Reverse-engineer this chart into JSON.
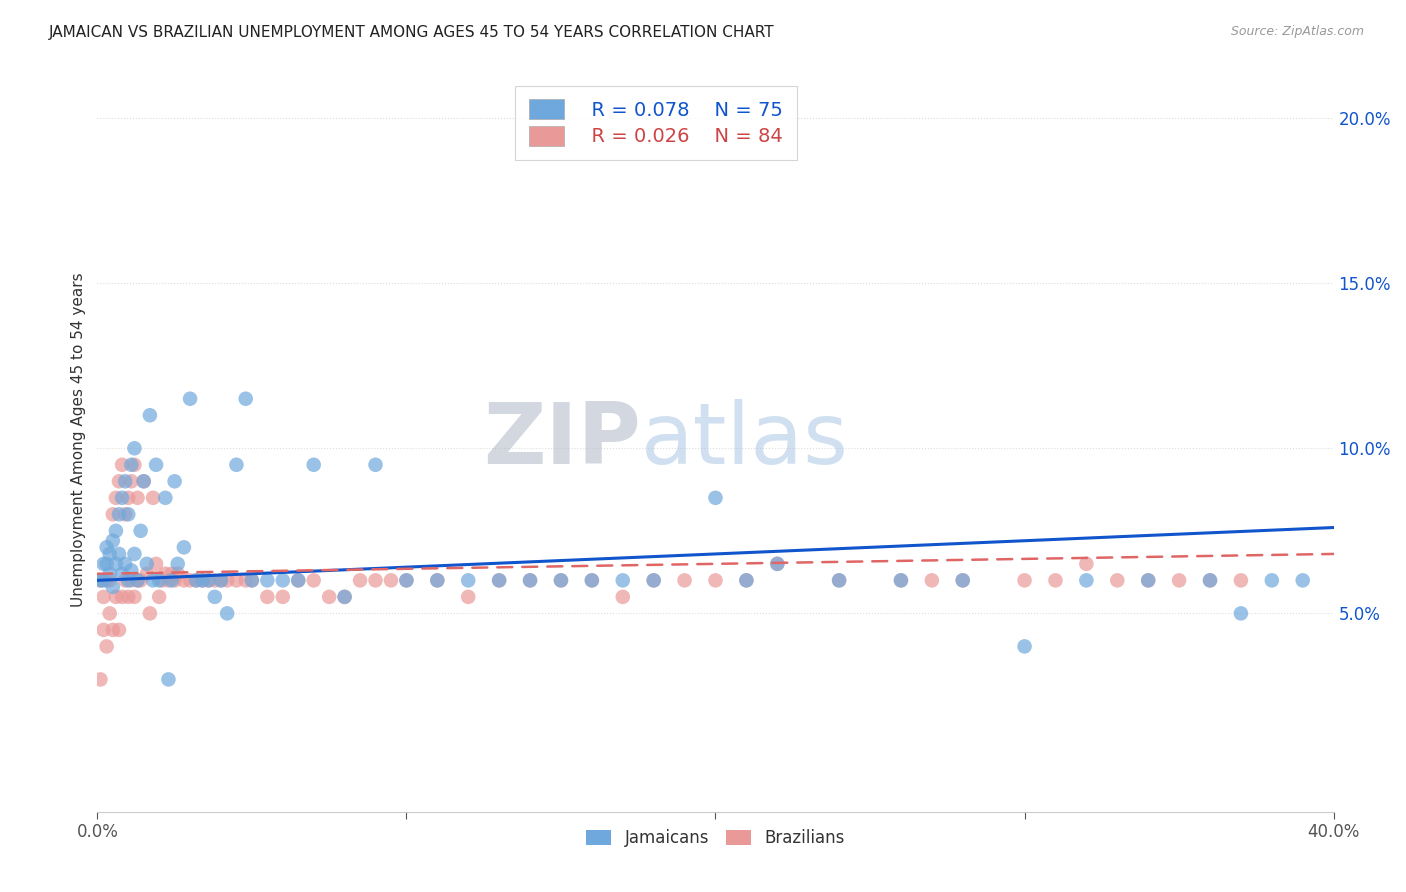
{
  "title": "JAMAICAN VS BRAZILIAN UNEMPLOYMENT AMONG AGES 45 TO 54 YEARS CORRELATION CHART",
  "source": "Source: ZipAtlas.com",
  "ylabel": "Unemployment Among Ages 45 to 54 years",
  "xlim": [
    0.0,
    0.4
  ],
  "ylim": [
    -0.01,
    0.215
  ],
  "yticks": [
    0.05,
    0.1,
    0.15,
    0.2
  ],
  "ytick_labels": [
    "5.0%",
    "10.0%",
    "15.0%",
    "20.0%"
  ],
  "xticks": [
    0.0,
    0.1,
    0.2,
    0.3,
    0.4
  ],
  "xtick_labels": [
    "0.0%",
    "",
    "",
    "",
    "40.0%"
  ],
  "jamaican_color": "#6fa8dc",
  "brazilian_color": "#ea9999",
  "trendline_jamaican_color": "#1155cc",
  "trendline_brazilian_color": "#e06666",
  "R_jamaican": 0.078,
  "N_jamaican": 75,
  "R_brazilian": 0.026,
  "N_brazilian": 84,
  "jamaican_x": [
    0.001,
    0.002,
    0.002,
    0.003,
    0.003,
    0.004,
    0.004,
    0.005,
    0.005,
    0.006,
    0.006,
    0.007,
    0.007,
    0.008,
    0.008,
    0.009,
    0.009,
    0.01,
    0.01,
    0.011,
    0.011,
    0.012,
    0.012,
    0.013,
    0.014,
    0.015,
    0.016,
    0.017,
    0.018,
    0.019,
    0.02,
    0.022,
    0.023,
    0.024,
    0.025,
    0.026,
    0.028,
    0.03,
    0.032,
    0.034,
    0.036,
    0.038,
    0.04,
    0.042,
    0.045,
    0.048,
    0.05,
    0.055,
    0.06,
    0.065,
    0.07,
    0.08,
    0.09,
    0.1,
    0.11,
    0.12,
    0.13,
    0.14,
    0.15,
    0.16,
    0.17,
    0.18,
    0.2,
    0.21,
    0.22,
    0.24,
    0.26,
    0.28,
    0.3,
    0.32,
    0.34,
    0.36,
    0.37,
    0.38,
    0.39
  ],
  "jamaican_y": [
    0.06,
    0.065,
    0.06,
    0.07,
    0.065,
    0.062,
    0.068,
    0.072,
    0.058,
    0.075,
    0.065,
    0.068,
    0.08,
    0.062,
    0.085,
    0.065,
    0.09,
    0.06,
    0.08,
    0.063,
    0.095,
    0.068,
    0.1,
    0.06,
    0.075,
    0.09,
    0.065,
    0.11,
    0.06,
    0.095,
    0.06,
    0.085,
    0.03,
    0.06,
    0.09,
    0.065,
    0.07,
    0.115,
    0.06,
    0.06,
    0.06,
    0.055,
    0.06,
    0.05,
    0.095,
    0.115,
    0.06,
    0.06,
    0.06,
    0.06,
    0.095,
    0.055,
    0.095,
    0.06,
    0.06,
    0.06,
    0.06,
    0.06,
    0.06,
    0.06,
    0.06,
    0.06,
    0.085,
    0.06,
    0.065,
    0.06,
    0.06,
    0.06,
    0.04,
    0.06,
    0.06,
    0.06,
    0.05,
    0.06,
    0.06
  ],
  "brazilian_x": [
    0.001,
    0.001,
    0.002,
    0.002,
    0.003,
    0.003,
    0.004,
    0.004,
    0.005,
    0.005,
    0.006,
    0.006,
    0.007,
    0.007,
    0.008,
    0.008,
    0.009,
    0.009,
    0.01,
    0.01,
    0.011,
    0.011,
    0.012,
    0.012,
    0.013,
    0.013,
    0.014,
    0.015,
    0.016,
    0.017,
    0.018,
    0.019,
    0.02,
    0.021,
    0.022,
    0.023,
    0.024,
    0.025,
    0.026,
    0.028,
    0.03,
    0.032,
    0.034,
    0.036,
    0.038,
    0.04,
    0.042,
    0.045,
    0.048,
    0.05,
    0.055,
    0.06,
    0.065,
    0.07,
    0.075,
    0.08,
    0.085,
    0.09,
    0.095,
    0.1,
    0.11,
    0.12,
    0.13,
    0.14,
    0.15,
    0.16,
    0.17,
    0.18,
    0.19,
    0.2,
    0.21,
    0.22,
    0.24,
    0.26,
    0.27,
    0.28,
    0.3,
    0.31,
    0.32,
    0.33,
    0.34,
    0.35,
    0.36,
    0.37
  ],
  "brazilian_y": [
    0.06,
    0.03,
    0.045,
    0.055,
    0.04,
    0.06,
    0.05,
    0.06,
    0.045,
    0.08,
    0.055,
    0.085,
    0.045,
    0.09,
    0.055,
    0.095,
    0.06,
    0.08,
    0.055,
    0.085,
    0.06,
    0.09,
    0.055,
    0.095,
    0.06,
    0.085,
    0.06,
    0.09,
    0.062,
    0.05,
    0.085,
    0.065,
    0.055,
    0.06,
    0.062,
    0.06,
    0.062,
    0.06,
    0.062,
    0.06,
    0.06,
    0.06,
    0.06,
    0.06,
    0.06,
    0.06,
    0.06,
    0.06,
    0.06,
    0.06,
    0.055,
    0.055,
    0.06,
    0.06,
    0.055,
    0.055,
    0.06,
    0.06,
    0.06,
    0.06,
    0.06,
    0.055,
    0.06,
    0.06,
    0.06,
    0.06,
    0.055,
    0.06,
    0.06,
    0.06,
    0.06,
    0.065,
    0.06,
    0.06,
    0.06,
    0.06,
    0.06,
    0.06,
    0.065,
    0.06,
    0.06,
    0.06,
    0.06,
    0.06
  ],
  "trendline_x_start": 0.0,
  "trendline_x_end": 0.4,
  "jamaican_trend_y_start": 0.06,
  "jamaican_trend_y_end": 0.076,
  "brazilian_trend_y_start": 0.062,
  "brazilian_trend_y_end": 0.068,
  "watermark_zip": "ZIP",
  "watermark_atlas": "atlas",
  "background_color": "#ffffff",
  "grid_color": "#dddddd"
}
